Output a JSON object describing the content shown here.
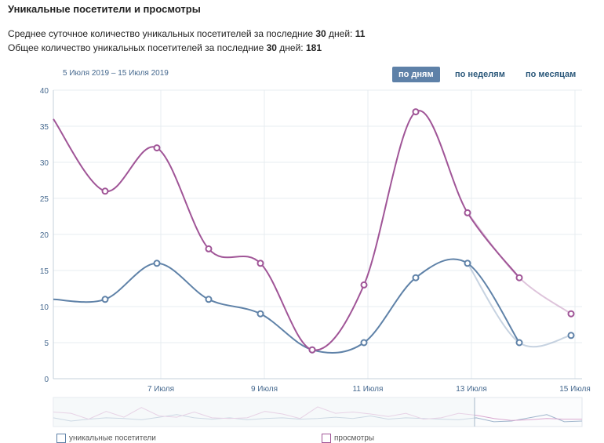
{
  "header": {
    "title": "Уникальные посетители и просмотры",
    "avg_prefix": "Среднее суточное количество уникальных посетителей за последние ",
    "avg_days": "30",
    "avg_mid": " дней: ",
    "avg_value": "11",
    "total_prefix": "Общее количество уникальных посетителей за последние ",
    "total_days": "30",
    "total_mid": " дней: ",
    "total_value": "181"
  },
  "controls": {
    "date_range": "5 Июля 2019 – 15 Июля 2019",
    "periods": [
      "по дням",
      "по неделям",
      "по месяцам"
    ],
    "active_period": "по дням"
  },
  "legend": {
    "visitors": "уникальные посетители",
    "views": "просмотры"
  },
  "colors": {
    "visitors": "#5f82a8",
    "views": "#a05597"
  },
  "chart_data": {
    "type": "line",
    "x": [
      "5 Июля",
      "6 Июля",
      "7 Июля",
      "8 Июля",
      "9 Июля",
      "10 Июля",
      "11 Июля",
      "12 Июля",
      "13 Июля",
      "14 Июля",
      "15 Июля"
    ],
    "x_tick_labels": [
      "7 Июля",
      "9 Июля",
      "11 Июля",
      "13 Июля",
      "15 Июля"
    ],
    "y_ticks": [
      0,
      5,
      10,
      15,
      20,
      25,
      30,
      35,
      40
    ],
    "ylim": [
      0,
      40
    ],
    "grid": true,
    "series": [
      {
        "name": "уникальные посетители",
        "values": [
          11,
          11,
          16,
          11,
          9,
          4,
          5,
          14,
          16,
          5,
          6
        ]
      },
      {
        "name": "просмотры",
        "values": [
          36,
          26,
          32,
          18,
          16,
          4,
          13,
          37,
          23,
          14,
          9
        ]
      }
    ]
  }
}
